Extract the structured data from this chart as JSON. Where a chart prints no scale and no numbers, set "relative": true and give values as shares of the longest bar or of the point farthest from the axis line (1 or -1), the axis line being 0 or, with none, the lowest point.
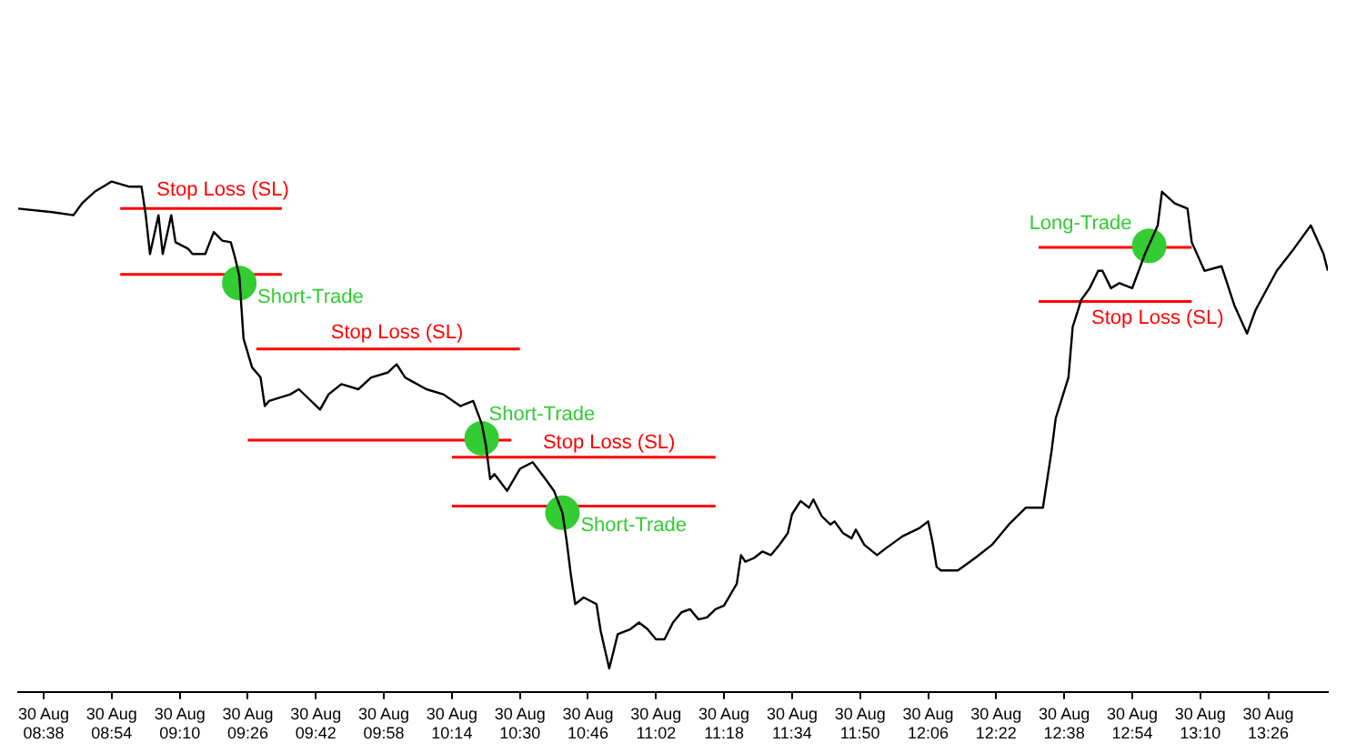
{
  "chart_data": {
    "type": "line",
    "relative": true,
    "grid": false,
    "legend": false,
    "xlim": [
      "--08-30T08:32",
      "--08-30T13:40"
    ],
    "xticks": [
      {
        "value": "--08-30T08:38",
        "label": "30 Aug 08:38"
      },
      {
        "value": "--08-30T08:54",
        "label": "30 Aug 08:54"
      },
      {
        "value": "--08-30T09:10",
        "label": "30 Aug 09:10"
      },
      {
        "value": "--08-30T09:26",
        "label": "30 Aug 09:26"
      },
      {
        "value": "--08-30T09:42",
        "label": "30 Aug 09:42"
      },
      {
        "value": "--08-30T09:58",
        "label": "30 Aug 09:58"
      },
      {
        "value": "--08-30T10:14",
        "label": "30 Aug 10:14"
      },
      {
        "value": "--08-30T10:30",
        "label": "30 Aug 10:30"
      },
      {
        "value": "--08-30T10:46",
        "label": "30 Aug 10:46"
      },
      {
        "value": "--08-30T11:02",
        "label": "30 Aug 11:02"
      },
      {
        "value": "--08-30T11:18",
        "label": "30 Aug 11:18"
      },
      {
        "value": "--08-30T11:34",
        "label": "30 Aug 11:34"
      },
      {
        "value": "--08-30T11:50",
        "label": "30 Aug 11:50"
      },
      {
        "value": "--08-30T12:06",
        "label": "30 Aug 12:06"
      },
      {
        "value": "--08-30T12:22",
        "label": "30 Aug 12:22"
      },
      {
        "value": "--08-30T12:38",
        "label": "30 Aug 12:38"
      },
      {
        "value": "--08-30T12:54",
        "label": "30 Aug 12:54"
      },
      {
        "value": "--08-30T13:10",
        "label": "30 Aug 13:10"
      },
      {
        "value": "--08-30T13:26",
        "label": "30 Aug 13:26"
      }
    ],
    "x": [
      "--08-30T08:32",
      "--08-30T08:40",
      "--08-30T08:45",
      "--08-30T08:47",
      "--08-30T08:50",
      "--08-30T08:54",
      "--08-30T08:58",
      "--08-30T09:01",
      "--08-30T09:02",
      "--08-30T09:03",
      "--08-30T09:05",
      "--08-30T09:06",
      "--08-30T09:08",
      "--08-30T09:09",
      "--08-30T09:12",
      "--08-30T09:13",
      "--08-30T09:16",
      "--08-30T09:18",
      "--08-30T09:20",
      "--08-30T09:22",
      "--08-30T09:23",
      "--08-30T09:24",
      "--08-30T09:25",
      "--08-30T09:27",
      "--08-30T09:29",
      "--08-30T09:30",
      "--08-30T09:31",
      "--08-30T09:36",
      "--08-30T09:38",
      "--08-30T09:43",
      "--08-30T09:45",
      "--08-30T09:48",
      "--08-30T09:52",
      "--08-30T09:55",
      "--08-30T09:59",
      "--08-30T10:01",
      "--08-30T10:03",
      "--08-30T10:08",
      "--08-30T10:12",
      "--08-30T10:16",
      "--08-30T10:19",
      "--08-30T10:21",
      "--08-30T10:22",
      "--08-30T10:23",
      "--08-30T10:24",
      "--08-30T10:27",
      "--08-30T10:30",
      "--08-30T10:33",
      "--08-30T10:36",
      "--08-30T10:38",
      "--08-30T10:40",
      "--08-30T10:41",
      "--08-30T10:42",
      "--08-30T10:43",
      "--08-30T10:45",
      "--08-30T10:48",
      "--08-30T10:49",
      "--08-30T10:51",
      "--08-30T10:52",
      "--08-30T10:53",
      "--08-30T10:56",
      "--08-30T10:58",
      "--08-30T11:00",
      "--08-30T11:02",
      "--08-30T11:04",
      "--08-30T11:06",
      "--08-30T11:08",
      "--08-30T11:10",
      "--08-30T11:12",
      "--08-30T11:14",
      "--08-30T11:16",
      "--08-30T11:18",
      "--08-30T11:21",
      "--08-30T11:22",
      "--08-30T11:23",
      "--08-30T11:25",
      "--08-30T11:27",
      "--08-30T11:29",
      "--08-30T11:31",
      "--08-30T11:33",
      "--08-30T11:34",
      "--08-30T11:36",
      "--08-30T11:38",
      "--08-30T11:39",
      "--08-30T11:41",
      "--08-30T11:43",
      "--08-30T11:44",
      "--08-30T11:46",
      "--08-30T11:48",
      "--08-30T11:49",
      "--08-30T11:51",
      "--08-30T11:54",
      "--08-30T11:56",
      "--08-30T12:00",
      "--08-30T12:04",
      "--08-30T12:06",
      "--08-30T12:07",
      "--08-30T12:08",
      "--08-30T12:09",
      "--08-30T12:13",
      "--08-30T12:17",
      "--08-30T12:21",
      "--08-30T12:25",
      "--08-30T12:29",
      "--08-30T12:33",
      "--08-30T12:35",
      "--08-30T12:36",
      "--08-30T12:39",
      "--08-30T12:40",
      "--08-30T12:42",
      "--08-30T12:44",
      "--08-30T12:46",
      "--08-30T12:47",
      "--08-30T12:49",
      "--08-30T12:51",
      "--08-30T12:54",
      "--08-30T12:57",
      "--08-30T13:00",
      "--08-30T13:01",
      "--08-30T13:04",
      "--08-30T13:07",
      "--08-30T13:08",
      "--08-30T13:11",
      "--08-30T13:15",
      "--08-30T13:18",
      "--08-30T13:21",
      "--08-30T13:23",
      "--08-30T13:28",
      "--08-30T13:32",
      "--08-30T13:36",
      "--08-30T13:39",
      "--08-30T13:40"
    ],
    "series": [
      {
        "type": "line",
        "color": "#000000",
        "values": [
          0.947,
          0.94,
          0.934,
          0.957,
          0.98,
          1.0,
          0.99,
          0.99,
          0.934,
          0.858,
          0.934,
          0.858,
          0.934,
          0.881,
          0.868,
          0.858,
          0.858,
          0.901,
          0.884,
          0.881,
          0.851,
          0.815,
          0.692,
          0.636,
          0.616,
          0.56,
          0.57,
          0.583,
          0.593,
          0.553,
          0.583,
          0.603,
          0.593,
          0.616,
          0.626,
          0.642,
          0.616,
          0.593,
          0.583,
          0.56,
          0.57,
          0.526,
          0.483,
          0.417,
          0.427,
          0.394,
          0.437,
          0.45,
          0.417,
          0.394,
          0.351,
          0.295,
          0.228,
          0.172,
          0.185,
          0.172,
          0.119,
          0.046,
          0.079,
          0.113,
          0.123,
          0.136,
          0.123,
          0.103,
          0.103,
          0.136,
          0.156,
          0.162,
          0.142,
          0.146,
          0.162,
          0.169,
          0.212,
          0.268,
          0.255,
          0.262,
          0.275,
          0.268,
          0.288,
          0.311,
          0.348,
          0.374,
          0.361,
          0.377,
          0.344,
          0.328,
          0.334,
          0.311,
          0.301,
          0.318,
          0.288,
          0.268,
          0.281,
          0.305,
          0.321,
          0.334,
          0.295,
          0.245,
          0.238,
          0.238,
          0.262,
          0.288,
          0.328,
          0.361,
          0.361,
          0.47,
          0.536,
          0.616,
          0.715,
          0.768,
          0.791,
          0.825,
          0.825,
          0.791,
          0.801,
          0.791,
          0.858,
          0.914,
          0.98,
          0.957,
          0.947,
          0.881,
          0.825,
          0.834,
          0.758,
          0.702,
          0.748,
          0.825,
          0.868,
          0.914,
          0.858,
          0.825
        ]
      },
      {
        "type": "line",
        "name": "Stop Loss (SL)",
        "color": "#ff0000",
        "x": [
          "--08-30T08:56",
          "--08-30T09:34"
        ],
        "values": [
          0.947,
          0.947
        ]
      },
      {
        "type": "line",
        "color": "#ff0000",
        "x": [
          "--08-30T08:56",
          "--08-30T09:34"
        ],
        "values": [
          0.818,
          0.818
        ]
      },
      {
        "type": "line",
        "name": "Stop Loss (SL)",
        "color": "#ff0000",
        "x": [
          "--08-30T09:28",
          "--08-30T10:30"
        ],
        "values": [
          0.672,
          0.672
        ]
      },
      {
        "type": "line",
        "color": "#ff0000",
        "x": [
          "--08-30T09:26",
          "--08-30T10:28"
        ],
        "values": [
          0.493,
          0.493
        ]
      },
      {
        "type": "line",
        "name": "Stop Loss (SL)",
        "color": "#ff0000",
        "x": [
          "--08-30T10:14",
          "--08-30T11:16"
        ],
        "values": [
          0.46,
          0.46
        ]
      },
      {
        "type": "line",
        "color": "#ff0000",
        "x": [
          "--08-30T10:14",
          "--08-30T11:16"
        ],
        "values": [
          0.364,
          0.364
        ]
      },
      {
        "type": "line",
        "color": "#ff0000",
        "x": [
          "--08-30T12:32",
          "--08-30T13:08"
        ],
        "values": [
          0.871,
          0.871
        ]
      },
      {
        "type": "line",
        "name": "Stop Loss (SL)",
        "color": "#ff0000",
        "x": [
          "--08-30T12:32",
          "--08-30T13:08"
        ],
        "values": [
          0.765,
          0.765
        ]
      },
      {
        "type": "scatter",
        "name": "Short-Trade",
        "color": "#33cc33",
        "x": [
          "--08-30T09:24"
        ],
        "values": [
          0.801
        ]
      },
      {
        "type": "scatter",
        "name": "Short-Trade",
        "color": "#33cc33",
        "x": [
          "--08-30T10:21"
        ],
        "values": [
          0.497
        ]
      },
      {
        "type": "scatter",
        "name": "Short-Trade",
        "color": "#33cc33",
        "x": [
          "--08-30T10:40"
        ],
        "values": [
          0.351
        ]
      },
      {
        "type": "scatter",
        "name": "Long-Trade",
        "color": "#33cc33",
        "x": [
          "--08-30T12:58"
        ],
        "values": [
          0.874
        ]
      }
    ]
  }
}
